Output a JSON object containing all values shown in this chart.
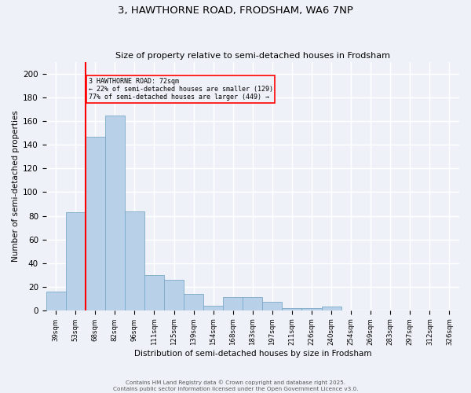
{
  "title1": "3, HAWTHORNE ROAD, FRODSHAM, WA6 7NP",
  "title2": "Size of property relative to semi-detached houses in Frodsham",
  "xlabel": "Distribution of semi-detached houses by size in Frodsham",
  "ylabel": "Number of semi-detached properties",
  "footnote": "Contains HM Land Registry data © Crown copyright and database right 2025.\nContains public sector information licensed under the Open Government Licence v3.0.",
  "bar_labels": [
    "39sqm",
    "53sqm",
    "68sqm",
    "82sqm",
    "96sqm",
    "111sqm",
    "125sqm",
    "139sqm",
    "154sqm",
    "168sqm",
    "183sqm",
    "197sqm",
    "211sqm",
    "226sqm",
    "240sqm",
    "254sqm",
    "269sqm",
    "283sqm",
    "297sqm",
    "312sqm",
    "326sqm"
  ],
  "bar_values": [
    16,
    83,
    147,
    165,
    84,
    30,
    26,
    14,
    4,
    11,
    11,
    7,
    2,
    2,
    3,
    0,
    0,
    0,
    0,
    0,
    0
  ],
  "bar_color": "#b8d0e8",
  "bar_edge_color": "#7aaac8",
  "property_label": "3 HAWTHORNE ROAD: 72sqm",
  "pct_smaller": 22,
  "n_smaller": 129,
  "pct_larger": 77,
  "n_larger": 449,
  "vline_color": "red",
  "annotation_box_color": "red",
  "ylim": [
    0,
    210
  ],
  "yticks": [
    0,
    20,
    40,
    60,
    80,
    100,
    120,
    140,
    160,
    180,
    200
  ],
  "background_color": "#eef2f8",
  "grid_color": "#ffffff"
}
